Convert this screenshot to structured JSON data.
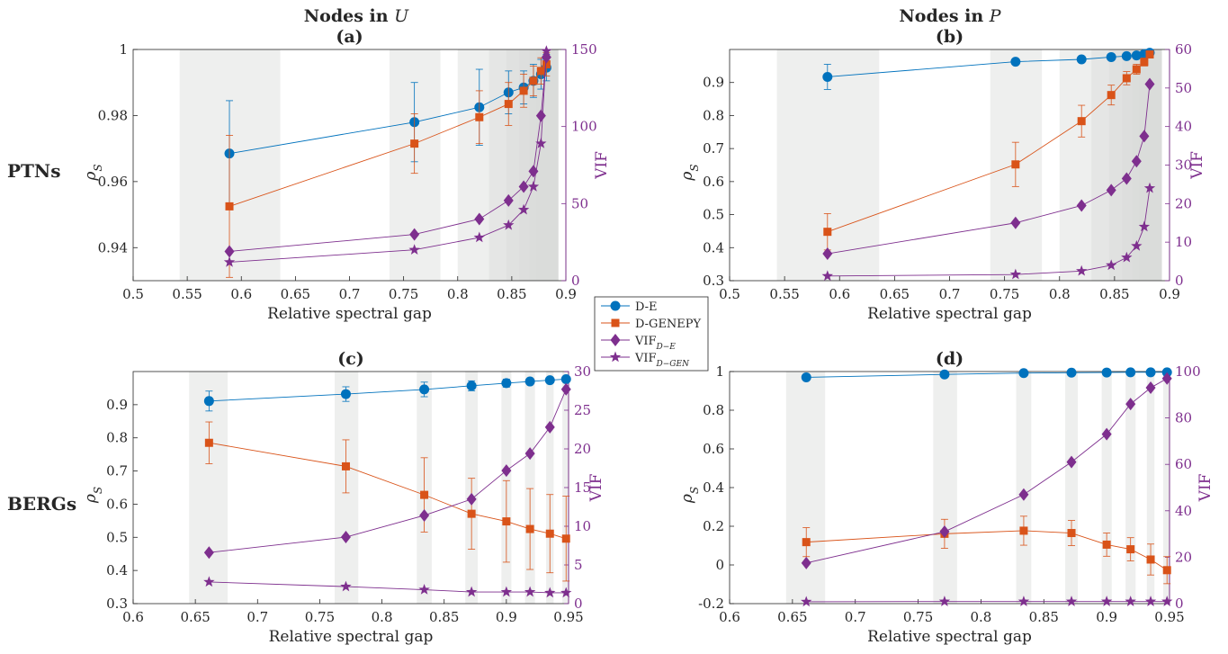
{
  "headers": {
    "col_u": "Nodes in ",
    "col_u_var": "U",
    "col_p": "Nodes in ",
    "col_p_var": "P"
  },
  "row_labels": {
    "top": "PTNs",
    "bottom": "BERGs"
  },
  "legend": [
    {
      "label": "D-E",
      "color": "#0072bd",
      "marker": "circle"
    },
    {
      "label": "D-GENEPY",
      "color": "#d95319",
      "marker": "square"
    },
    {
      "label": "VIF",
      "sub": "D−E",
      "color": "#7e2f8e",
      "marker": "diamond"
    },
    {
      "label": "VIF",
      "sub": "D−GEN",
      "color": "#7e2f8e",
      "marker": "star"
    }
  ],
  "colors": {
    "de": "#0072bd",
    "genepy": "#d95319",
    "vif": "#7e2f8e",
    "band": "#d9dcda"
  },
  "chart_data": [
    {
      "id": "a",
      "title": "(a)",
      "type": "line",
      "xlabel": "Relative spectral gap",
      "ylabel": "ρS",
      "y2label": "VIF",
      "xlim": [
        0.5,
        0.9
      ],
      "ylim": [
        0.93,
        1.0
      ],
      "y2lim": [
        0,
        150
      ],
      "xticks": [
        0.5,
        0.55,
        0.6,
        0.65,
        0.7,
        0.75,
        0.8,
        0.85,
        0.9
      ],
      "yticks": [
        0.94,
        0.96,
        0.98,
        1.0
      ],
      "ytick_labels": [
        "0.94",
        "0.96",
        "0.98",
        "1"
      ],
      "y2ticks": [
        0,
        50,
        100,
        150
      ],
      "bands": [
        [
          0.543,
          0.636
        ],
        [
          0.737,
          0.784
        ],
        [
          0.8,
          0.893
        ],
        [
          0.829,
          0.893
        ],
        [
          0.845,
          0.893
        ],
        [
          0.857,
          0.893
        ],
        [
          0.866,
          0.893
        ],
        [
          0.873,
          0.893
        ],
        [
          0.878,
          0.893
        ]
      ],
      "x": [
        0.589,
        0.76,
        0.82,
        0.847,
        0.861,
        0.87,
        0.877,
        0.882
      ],
      "series": [
        {
          "name": "D-E",
          "axis": "left",
          "values": [
            0.9685,
            0.978,
            0.9825,
            0.987,
            0.9885,
            0.9905,
            0.9925,
            0.9945
          ],
          "err": [
            0.016,
            0.012,
            0.0115,
            0.0065,
            0.005,
            0.005,
            0.0045,
            0.004
          ]
        },
        {
          "name": "D-GENEPY",
          "axis": "left",
          "values": [
            0.9525,
            0.9715,
            0.9795,
            0.9835,
            0.9875,
            0.9905,
            0.9935,
            0.9955
          ],
          "err": [
            0.0215,
            0.009,
            0.008,
            0.0065,
            0.005,
            0.0045,
            0.004,
            0.0035
          ]
        },
        {
          "name": "VIF_D-E",
          "axis": "right",
          "values": [
            19,
            30,
            40,
            52,
            61,
            71,
            107,
            145
          ]
        },
        {
          "name": "VIF_D-GEN",
          "axis": "right",
          "values": [
            12,
            20,
            28,
            36,
            46,
            61,
            89,
            149
          ]
        }
      ]
    },
    {
      "id": "b",
      "title": "(b)",
      "type": "line",
      "xlabel": "Relative spectral gap",
      "ylabel": "ρS",
      "y2label": "VIF",
      "xlim": [
        0.5,
        0.9
      ],
      "ylim": [
        0.3,
        1.0
      ],
      "y2lim": [
        0,
        60
      ],
      "xticks": [
        0.5,
        0.55,
        0.6,
        0.65,
        0.7,
        0.75,
        0.8,
        0.85,
        0.9
      ],
      "yticks": [
        0.3,
        0.4,
        0.5,
        0.6,
        0.7,
        0.8,
        0.9
      ],
      "ytick_labels": [
        "0.3",
        "0.4",
        "0.5",
        "0.6",
        "0.7",
        "0.8",
        "0.9"
      ],
      "y2ticks": [
        0,
        10,
        20,
        30,
        40,
        50,
        60
      ],
      "bands": [
        [
          0.543,
          0.636
        ],
        [
          0.737,
          0.784
        ],
        [
          0.8,
          0.893
        ],
        [
          0.829,
          0.893
        ],
        [
          0.845,
          0.893
        ],
        [
          0.857,
          0.893
        ],
        [
          0.866,
          0.893
        ],
        [
          0.873,
          0.893
        ],
        [
          0.878,
          0.893
        ]
      ],
      "x": [
        0.589,
        0.76,
        0.82,
        0.847,
        0.861,
        0.87,
        0.877,
        0.882
      ],
      "series": [
        {
          "name": "D-E",
          "axis": "left",
          "values": [
            0.917,
            0.963,
            0.97,
            0.977,
            0.98,
            0.982,
            0.986,
            0.99
          ],
          "err": [
            0.038,
            0,
            0,
            0,
            0,
            0,
            0,
            0
          ]
        },
        {
          "name": "D-GENEPY",
          "axis": "left",
          "values": [
            0.448,
            0.652,
            0.783,
            0.862,
            0.913,
            0.94,
            0.962,
            0.985
          ],
          "err": [
            0.055,
            0.067,
            0.048,
            0.03,
            0.02,
            0.015,
            0.012,
            0.008
          ]
        },
        {
          "name": "VIF_D-E",
          "axis": "right",
          "values": [
            7,
            15,
            19.5,
            23.5,
            26.5,
            31,
            37.5,
            51
          ]
        },
        {
          "name": "VIF_D-GEN",
          "axis": "right",
          "values": [
            1.2,
            1.6,
            2.5,
            4,
            6,
            9,
            14,
            24
          ]
        }
      ]
    },
    {
      "id": "c",
      "title": "(c)",
      "type": "line",
      "xlabel": "Relative spectral gap",
      "ylabel": "ρS",
      "y2label": "VIF",
      "xlim": [
        0.6,
        0.95
      ],
      "ylim": [
        0.3,
        1.0
      ],
      "y2lim": [
        0,
        30
      ],
      "xticks": [
        0.6,
        0.65,
        0.7,
        0.75,
        0.8,
        0.85,
        0.9,
        0.95
      ],
      "yticks": [
        0.3,
        0.4,
        0.5,
        0.6,
        0.7,
        0.8,
        0.9
      ],
      "ytick_labels": [
        "0.3",
        "0.4",
        "0.5",
        "0.6",
        "0.7",
        "0.8",
        "0.9"
      ],
      "y2ticks": [
        0,
        5,
        10,
        15,
        20,
        25,
        30
      ],
      "bands": [
        [
          0.645,
          0.676
        ],
        [
          0.762,
          0.781
        ],
        [
          0.828,
          0.84
        ],
        [
          0.867,
          0.877
        ],
        [
          0.896,
          0.904
        ],
        [
          0.915,
          0.923
        ],
        [
          0.932,
          0.938
        ],
        [
          0.945,
          0.95
        ]
      ],
      "x": [
        0.661,
        0.771,
        0.834,
        0.872,
        0.9,
        0.919,
        0.935,
        0.948
      ],
      "series": [
        {
          "name": "D-E",
          "axis": "left",
          "values": [
            0.911,
            0.932,
            0.946,
            0.957,
            0.965,
            0.97,
            0.974,
            0.977
          ],
          "err": [
            0.03,
            0.022,
            0.022,
            0.015,
            0.012,
            0,
            0,
            0
          ]
        },
        {
          "name": "D-GENEPY",
          "axis": "left",
          "values": [
            0.785,
            0.714,
            0.628,
            0.571,
            0.548,
            0.525,
            0.511,
            0.496
          ],
          "err": [
            0.063,
            0.08,
            0.112,
            0.107,
            0.123,
            0.122,
            0.118,
            0.128
          ]
        },
        {
          "name": "VIF_D-E",
          "axis": "right",
          "values": [
            6.6,
            8.6,
            11.4,
            13.5,
            17.2,
            19.4,
            22.8,
            27.7
          ]
        },
        {
          "name": "VIF_D-GEN",
          "axis": "right",
          "values": [
            2.8,
            2.2,
            1.8,
            1.5,
            1.5,
            1.5,
            1.4,
            1.4
          ]
        }
      ]
    },
    {
      "id": "d",
      "title": "(d)",
      "type": "line",
      "xlabel": "Relative spectral gap",
      "ylabel": "ρS",
      "y2label": "VIF",
      "xlim": [
        0.6,
        0.95
      ],
      "ylim": [
        -0.2,
        1.0
      ],
      "y2lim": [
        0,
        100
      ],
      "xticks": [
        0.6,
        0.65,
        0.7,
        0.75,
        0.8,
        0.85,
        0.9,
        0.95
      ],
      "yticks": [
        -0.2,
        0,
        0.2,
        0.4,
        0.6,
        0.8,
        1.0
      ],
      "ytick_labels": [
        "-0.2",
        "0",
        "0.2",
        "0.4",
        "0.6",
        "0.8",
        "1"
      ],
      "y2ticks": [
        0,
        20,
        40,
        60,
        80,
        100
      ],
      "bands": [
        [
          0.645,
          0.676
        ],
        [
          0.762,
          0.781
        ],
        [
          0.828,
          0.84
        ],
        [
          0.867,
          0.877
        ],
        [
          0.896,
          0.904
        ],
        [
          0.915,
          0.923
        ],
        [
          0.932,
          0.938
        ],
        [
          0.945,
          0.95
        ]
      ],
      "x": [
        0.661,
        0.771,
        0.834,
        0.872,
        0.9,
        0.919,
        0.935,
        0.948
      ],
      "series": [
        {
          "name": "D-E",
          "axis": "left",
          "values": [
            0.97,
            0.985,
            0.992,
            0.994,
            0.995,
            0.996,
            0.996,
            0.996
          ],
          "err": [
            0,
            0,
            0,
            0,
            0,
            0,
            0,
            0
          ]
        },
        {
          "name": "D-GENEPY",
          "axis": "left",
          "values": [
            0.118,
            0.161,
            0.177,
            0.165,
            0.105,
            0.081,
            0.028,
            -0.027
          ],
          "err": [
            0.075,
            0.075,
            0.075,
            0.065,
            0.06,
            0.06,
            0.08,
            0.07
          ]
        },
        {
          "name": "VIF_D-E",
          "axis": "right",
          "values": [
            17.5,
            31,
            47,
            61,
            73,
            86,
            93,
            97
          ]
        },
        {
          "name": "VIF_D-GEN",
          "axis": "right",
          "values": [
            0.8,
            0.9,
            0.9,
            0.9,
            0.9,
            0.9,
            0.9,
            0.9
          ]
        }
      ]
    }
  ]
}
